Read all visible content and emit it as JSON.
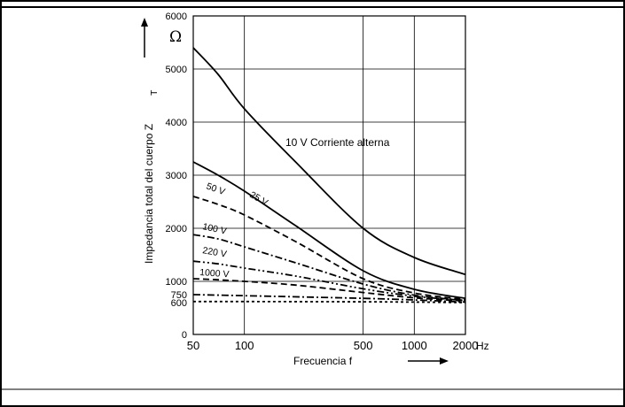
{
  "chart_data": {
    "type": "line",
    "xscale": "log",
    "xlim": [
      50,
      2000
    ],
    "ylim": [
      0,
      6000
    ],
    "x_ticks": [
      50,
      100,
      500,
      1000,
      2000
    ],
    "x_tick_labels": [
      "50",
      "100",
      "500",
      "1000",
      "2000"
    ],
    "y_ticks": [
      0,
      600,
      750,
      1000,
      2000,
      3000,
      4000,
      5000,
      6000
    ],
    "y_tick_labels": [
      "0",
      "600",
      "750",
      "1000",
      "2000",
      "3000",
      "4000",
      "5000",
      "6000"
    ],
    "xlabel": "Frecuencia f",
    "x_unit": "Hz",
    "ylabel": "Impedancia total del cuerpo Z",
    "ylabel_subscript": "T",
    "y_unit": "Ω",
    "grid": true,
    "series": [
      {
        "name": "10 V Corriente alterna",
        "style": "solid",
        "x": [
          50,
          70,
          100,
          200,
          500,
          1000,
          2000
        ],
        "values": [
          5400,
          4900,
          4250,
          3250,
          2000,
          1450,
          1130
        ]
      },
      {
        "name": "25 V",
        "style": "solid",
        "x": [
          50,
          70,
          100,
          200,
          500,
          1000,
          2000
        ],
        "values": [
          3250,
          3000,
          2700,
          2050,
          1200,
          850,
          680
        ]
      },
      {
        "name": "50 V",
        "style": "dashed",
        "x": [
          50,
          70,
          100,
          200,
          500,
          1000,
          2000
        ],
        "values": [
          2600,
          2450,
          2250,
          1750,
          1050,
          780,
          660
        ]
      },
      {
        "name": "100 V",
        "style": "dashdot",
        "x": [
          50,
          70,
          100,
          200,
          500,
          1000,
          2000
        ],
        "values": [
          1880,
          1800,
          1650,
          1350,
          950,
          740,
          640
        ]
      },
      {
        "name": "220 V",
        "style": "dashdotdot",
        "x": [
          50,
          70,
          100,
          200,
          500,
          1000,
          2000
        ],
        "values": [
          1380,
          1330,
          1250,
          1100,
          860,
          720,
          640
        ]
      },
      {
        "name": "1000 V",
        "style": "dashed",
        "x": [
          50,
          70,
          100,
          200,
          500,
          1000,
          2000
        ],
        "values": [
          1050,
          1030,
          1000,
          930,
          790,
          690,
          630
        ]
      },
      {
        "name": "",
        "style": "dashdot",
        "x": [
          50,
          100,
          500,
          1000,
          2000
        ],
        "values": [
          750,
          730,
          680,
          650,
          610
        ]
      },
      {
        "name": "",
        "style": "dotted",
        "x": [
          50,
          100,
          500,
          1000,
          2000
        ],
        "values": [
          620,
          620,
          615,
          610,
          600
        ]
      }
    ]
  }
}
